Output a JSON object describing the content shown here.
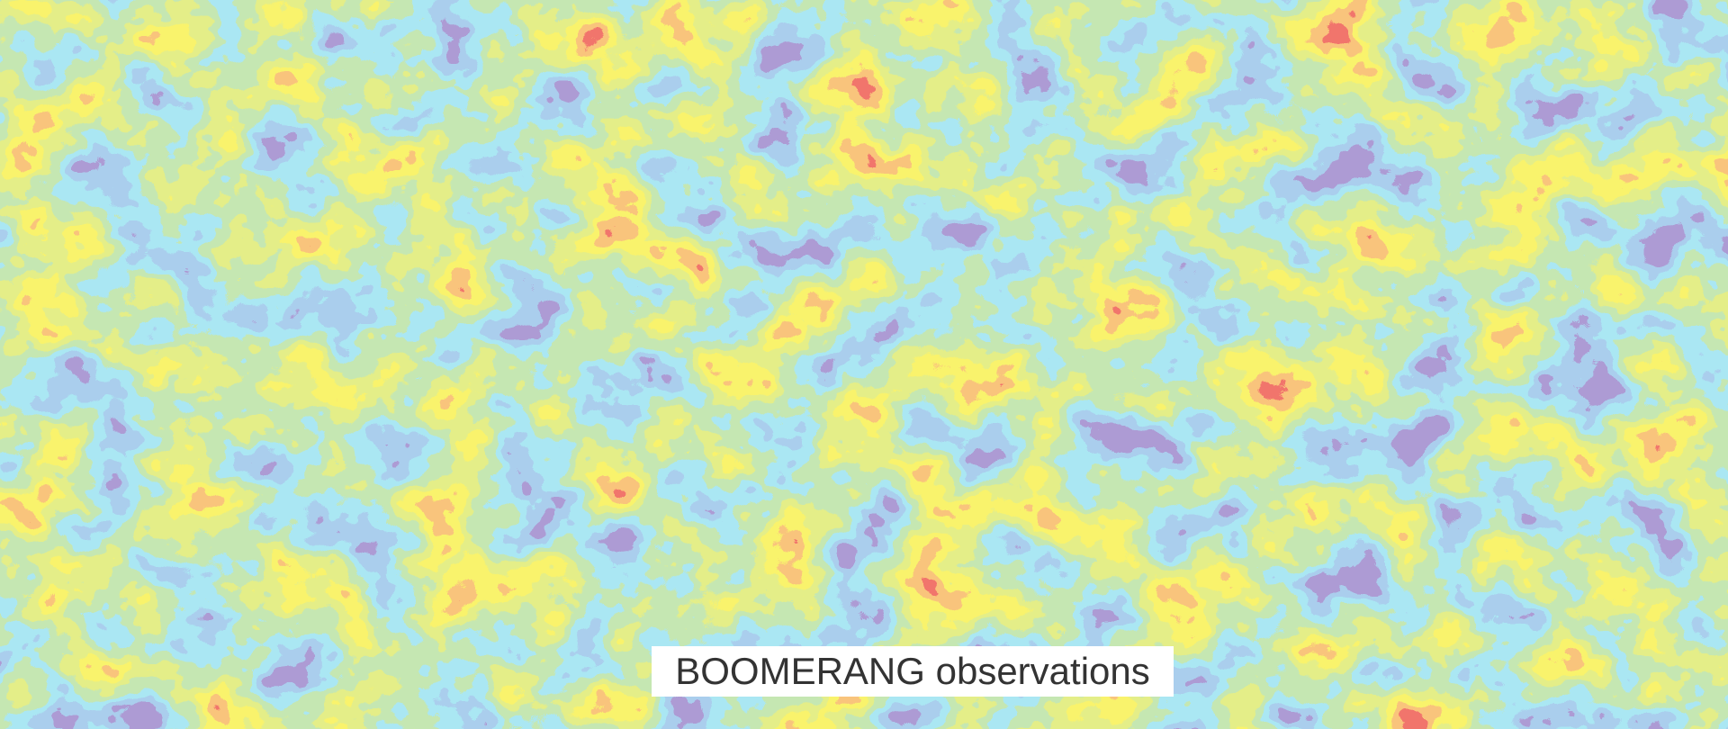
{
  "caption": "BOOMERANG observations"
}
